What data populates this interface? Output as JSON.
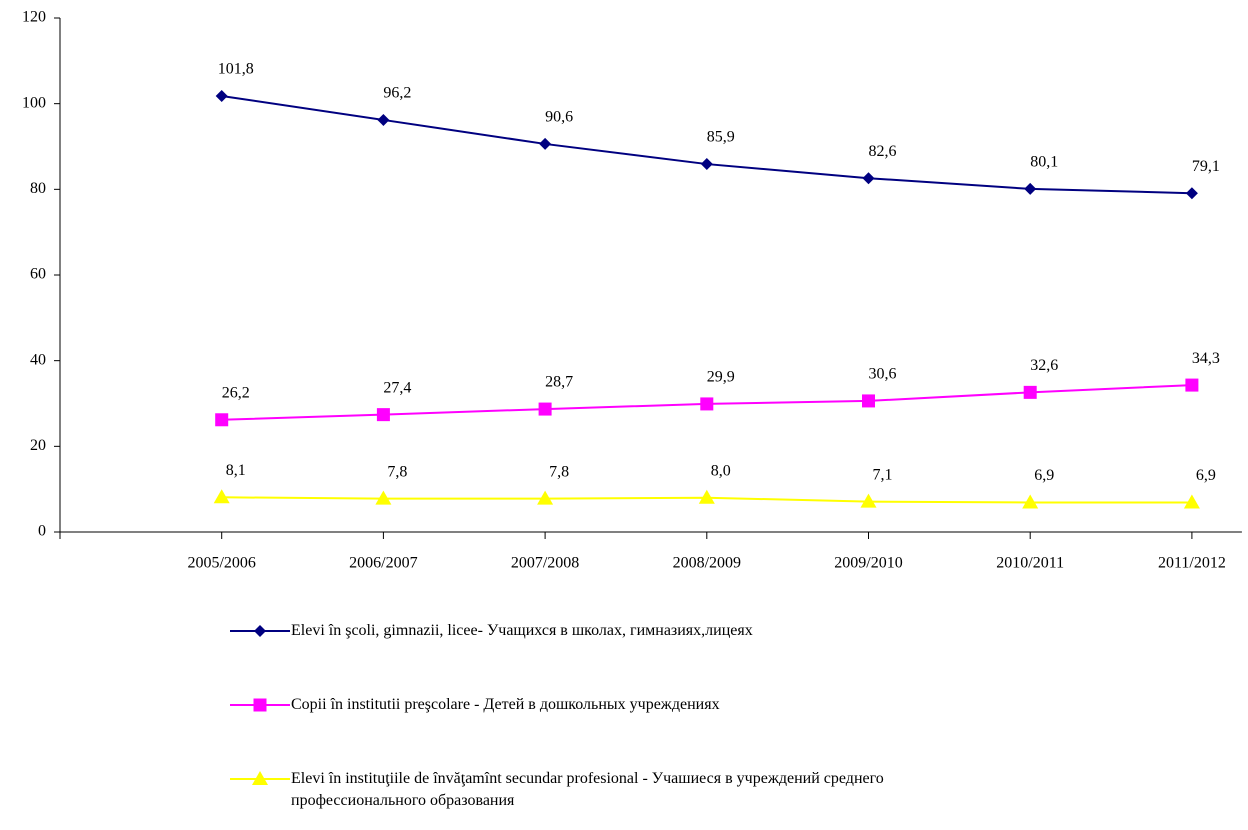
{
  "chart_data": {
    "type": "line",
    "categories": [
      null,
      "2005/2006",
      "2006/2007",
      "2007/2008",
      "2008/2009",
      "2009/2010",
      "2010/2011",
      "2011/2012"
    ],
    "series": [
      {
        "name": "Elevi în şcoli, gimnazii, licee- Учащихся в школах, гимназиях,лицеях",
        "color": "#000080",
        "marker": "diamond",
        "values": [
          null,
          101.8,
          96.2,
          90.6,
          85.9,
          82.6,
          80.1,
          79.1
        ],
        "value_labels": [
          null,
          "101,8",
          "96,2",
          "90,6",
          "85,9",
          "82,6",
          "80,1",
          "79,1"
        ]
      },
      {
        "name": "Copii în institutii preşcolare - Детей в дошкольных учреждениях",
        "color": "#ff00ff",
        "marker": "square",
        "values": [
          null,
          26.2,
          27.4,
          28.7,
          29.9,
          30.6,
          32.6,
          34.3
        ],
        "value_labels": [
          null,
          "26,2",
          "27,4",
          "28,7",
          "29,9",
          "30,6",
          "32,6",
          "34,3"
        ]
      },
      {
        "name": "Elevi în instituţiile de învăţamînt secundar profesional - Учашиеся в учреждений среднего профессионального образования",
        "color": "#ffff00",
        "marker": "triangle",
        "values": [
          null,
          8.1,
          7.8,
          7.8,
          8.0,
          7.1,
          6.9,
          6.9
        ],
        "value_labels": [
          null,
          "8,1",
          "7,8",
          "7,8",
          "8,0",
          "7,1",
          "6,9",
          "6,9"
        ]
      }
    ],
    "ylim": [
      0,
      120
    ],
    "yticks": [
      0,
      20,
      40,
      60,
      80,
      100,
      120
    ],
    "grid": false,
    "legend": "bottom"
  }
}
